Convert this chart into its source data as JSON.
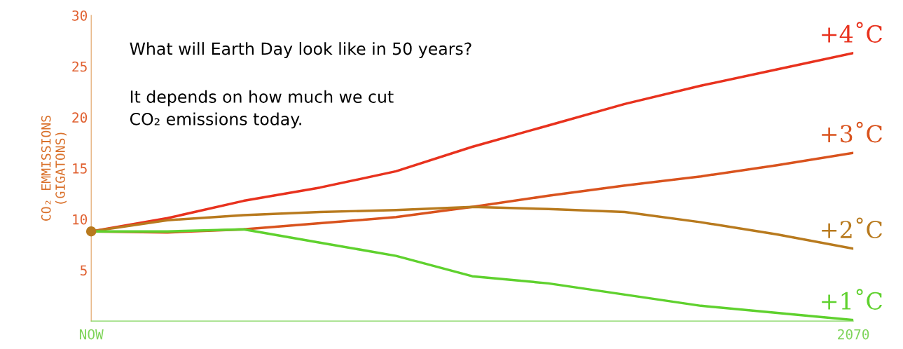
{
  "chart_data": {
    "type": "line",
    "ylabel": "CO₂ EMMISSIONS\n(GIGATONS)",
    "annotations": [
      "What will Earth Day look like in 50 years?",
      "It depends on how much we cut\nCO₂ emissions today."
    ],
    "categories": [
      "NOW",
      null,
      null,
      null,
      null,
      null,
      null,
      null,
      null,
      null,
      "2070"
    ],
    "ylim": [
      0,
      30
    ],
    "yticks": [
      5,
      10,
      15,
      20,
      25,
      30
    ],
    "grid": false,
    "series": [
      {
        "name": "+4˚C",
        "color": "#e8321e",
        "values": [
          8.8,
          10.1,
          11.8,
          13.1,
          14.7,
          17.1,
          19.2,
          21.3,
          23.1,
          24.7,
          26.3
        ]
      },
      {
        "name": "+3˚C",
        "color": "#d9531e",
        "values": [
          8.8,
          8.7,
          9.0,
          9.6,
          10.2,
          11.2,
          12.3,
          13.3,
          14.2,
          15.3,
          16.5
        ]
      },
      {
        "name": "+2˚C",
        "color": "#b87a1e",
        "values": [
          8.8,
          9.9,
          10.4,
          10.7,
          10.9,
          11.2,
          11.0,
          10.7,
          9.7,
          8.5,
          7.1
        ]
      },
      {
        "name": "+1˚C",
        "color": "#5fd12e",
        "values": [
          8.8,
          8.8,
          9.0,
          7.7,
          6.4,
          4.4,
          3.7,
          2.6,
          1.5,
          0.8,
          0.1
        ]
      },
      {
        "type": "scatter",
        "color": "#b87a1e",
        "values": [
          8.8,
          null,
          null,
          null,
          null,
          null,
          null,
          null,
          null,
          null,
          null
        ]
      }
    ]
  }
}
